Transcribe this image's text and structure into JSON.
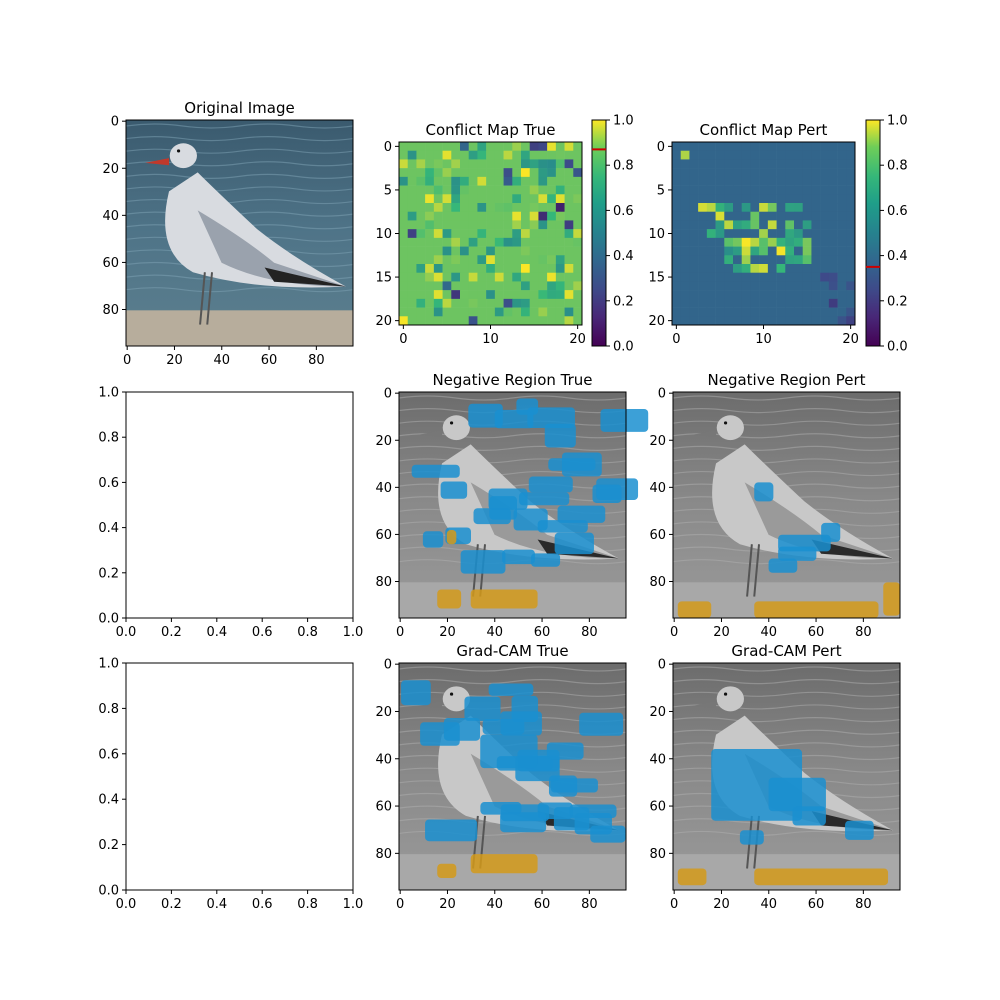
{
  "chart_data": [
    {
      "id": "p_orig",
      "type": "image",
      "title": "Original Image",
      "image_content": "seagull standing on shore, water background",
      "xticks": [
        "0",
        "20",
        "40",
        "60",
        "80"
      ],
      "yticks": [
        "0",
        "20",
        "40",
        "60",
        "80"
      ],
      "xlim": [
        0,
        95
      ],
      "ylim": [
        95,
        0
      ]
    },
    {
      "id": "p_cmt",
      "type": "heatmap",
      "title": "Conflict Map True",
      "grid_size": 21,
      "background_value": 0.82,
      "dominant_level": "high",
      "xticks": [
        "0",
        "10",
        "20"
      ],
      "yticks": [
        "0",
        "5",
        "10",
        "15",
        "20"
      ],
      "colorbar": {
        "colormap": "viridis",
        "range": [
          0,
          1
        ],
        "ticks": [
          "0.0",
          "0.2",
          "0.4",
          "0.6",
          "0.8",
          "1.0"
        ],
        "marker_value": 0.87,
        "marker_color": "#cc0000"
      }
    },
    {
      "id": "p_cmp",
      "type": "heatmap",
      "title": "Conflict Map Pert",
      "grid_size": 21,
      "background_value": 0.37,
      "dominant_level": "medium",
      "xticks": [
        "0",
        "10",
        "20"
      ],
      "yticks": [
        "0",
        "5",
        "10",
        "15",
        "20"
      ],
      "colorbar": {
        "colormap": "viridis",
        "range": [
          0,
          1
        ],
        "ticks": [
          "0.0",
          "0.2",
          "0.4",
          "0.6",
          "0.8",
          "1.0"
        ],
        "marker_value": 0.35,
        "marker_color": "#cc0000"
      }
    },
    {
      "id": "p_empty1",
      "type": "empty",
      "xticks": [
        "0.0",
        "0.2",
        "0.4",
        "0.6",
        "0.8",
        "1.0"
      ],
      "yticks": [
        "0.0",
        "0.2",
        "0.4",
        "0.6",
        "0.8",
        "1.0"
      ],
      "xlim": [
        0,
        1
      ],
      "ylim": [
        0,
        1
      ]
    },
    {
      "id": "p_nrt",
      "type": "image",
      "title": "Negative Region True",
      "image_content": "grayscale seagull with blue and orange overlay blobs",
      "xticks": [
        "0",
        "20",
        "40",
        "60",
        "80"
      ],
      "yticks": [
        "0",
        "20",
        "40",
        "60",
        "80"
      ],
      "xlim": [
        0,
        95
      ],
      "ylim": [
        95,
        0
      ]
    },
    {
      "id": "p_nrp",
      "type": "image",
      "title": "Negative Region Pert",
      "image_content": "grayscale seagull with sparse blue and orange overlay blobs",
      "xticks": [
        "0",
        "20",
        "40",
        "60",
        "80"
      ],
      "yticks": [
        "0",
        "20",
        "40",
        "60",
        "80"
      ],
      "xlim": [
        0,
        95
      ],
      "ylim": [
        95,
        0
      ]
    },
    {
      "id": "p_empty2",
      "type": "empty",
      "xticks": [
        "0.0",
        "0.2",
        "0.4",
        "0.6",
        "0.8",
        "1.0"
      ],
      "yticks": [
        "0.0",
        "0.2",
        "0.4",
        "0.6",
        "0.8",
        "1.0"
      ],
      "xlim": [
        0,
        1
      ],
      "ylim": [
        0,
        1
      ]
    },
    {
      "id": "p_gct",
      "type": "image",
      "title": "Grad-CAM True",
      "image_content": "grayscale seagull with blue water-region overlay",
      "xticks": [
        "0",
        "20",
        "40",
        "60",
        "80"
      ],
      "yticks": [
        "0",
        "20",
        "40",
        "60",
        "80"
      ],
      "xlim": [
        0,
        95
      ],
      "ylim": [
        95,
        0
      ]
    },
    {
      "id": "p_gcp",
      "type": "image",
      "title": "Grad-CAM Pert",
      "image_content": "grayscale seagull with blue overlay on bird body",
      "xticks": [
        "0",
        "20",
        "40",
        "60",
        "80"
      ],
      "yticks": [
        "0",
        "20",
        "40",
        "60",
        "80"
      ],
      "xlim": [
        0,
        95
      ],
      "ylim": [
        95,
        0
      ]
    }
  ]
}
